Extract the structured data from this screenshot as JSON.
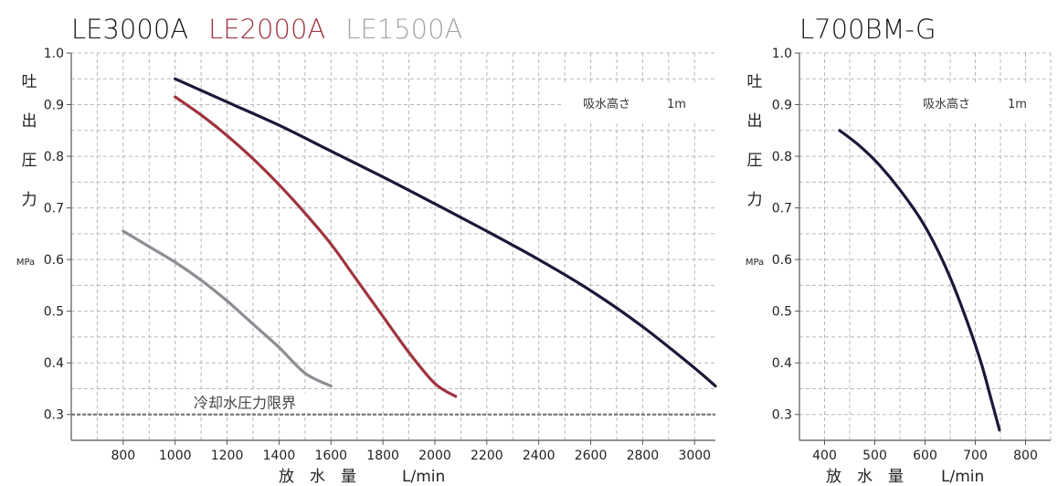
{
  "chart_data": [
    {
      "type": "line",
      "titles": [
        {
          "text": "LE3000A",
          "color": "#1a1a1a"
        },
        {
          "text": "LE2000A",
          "color": "#a0343f"
        },
        {
          "text": "LE1500A",
          "color": "#a5a5a5"
        }
      ],
      "ylabel_chars": [
        "吐",
        "出",
        "圧",
        "力"
      ],
      "yunit": "MPa",
      "xlabel_chars": [
        "放",
        "水",
        "量"
      ],
      "xunit": "L/min",
      "xlim": [
        600,
        3080
      ],
      "ylim": [
        0.25,
        1.0
      ],
      "xticks": [
        "800",
        "1000",
        "1200",
        "1400",
        "1600",
        "1800",
        "2000",
        "2200",
        "2400",
        "2600",
        "2800",
        "3000"
      ],
      "yticks": [
        "0.3",
        "0.4",
        "0.5",
        "0.6",
        "0.7",
        "0.8",
        "0.9",
        "1.0"
      ],
      "note": {
        "label": "吸水高さ",
        "value": "1m"
      },
      "limit": {
        "label": "冷却水圧力限界",
        "y": 0.3
      },
      "grid": "dashed",
      "series": [
        {
          "name": "LE3000A",
          "color": "#1b1838",
          "x": [
            1000,
            1200,
            1400,
            1600,
            1800,
            2000,
            2200,
            2400,
            2600,
            2800,
            3000,
            3080
          ],
          "y": [
            0.95,
            0.905,
            0.86,
            0.81,
            0.76,
            0.708,
            0.655,
            0.6,
            0.54,
            0.47,
            0.39,
            0.355
          ]
        },
        {
          "name": "LE2000A",
          "color": "#a0343f",
          "x": [
            1000,
            1100,
            1200,
            1300,
            1400,
            1500,
            1600,
            1700,
            1800,
            1900,
            2000,
            2080
          ],
          "y": [
            0.915,
            0.88,
            0.84,
            0.795,
            0.745,
            0.69,
            0.63,
            0.56,
            0.49,
            0.42,
            0.36,
            0.335
          ]
        },
        {
          "name": "LE1500A",
          "color": "#8d8d93",
          "x": [
            800,
            900,
            1000,
            1100,
            1200,
            1300,
            1400,
            1500,
            1600
          ],
          "y": [
            0.655,
            0.625,
            0.595,
            0.56,
            0.52,
            0.475,
            0.43,
            0.38,
            0.355
          ]
        }
      ]
    },
    {
      "type": "line",
      "titles": [
        {
          "text": "L700BM-G",
          "color": "#1a1a1a"
        }
      ],
      "ylabel_chars": [
        "吐",
        "出",
        "圧",
        "力"
      ],
      "yunit": "MPa",
      "xlabel_chars": [
        "放",
        "水",
        "量"
      ],
      "xunit": "L/min",
      "xlim": [
        350,
        850
      ],
      "ylim": [
        0.25,
        1.0
      ],
      "xticks": [
        "400",
        "500",
        "600",
        "700",
        "800"
      ],
      "yticks": [
        "0.3",
        "0.4",
        "0.5",
        "0.6",
        "0.7",
        "0.8",
        "0.9",
        "1.0"
      ],
      "note": {
        "label": "吸水高さ",
        "value": "1m"
      },
      "grid": "dashed",
      "series": [
        {
          "name": "L700BM-G",
          "color": "#1b1838",
          "x": [
            430,
            470,
            510,
            550,
            590,
            620,
            650,
            680,
            710,
            730,
            748
          ],
          "y": [
            0.85,
            0.82,
            0.782,
            0.735,
            0.68,
            0.628,
            0.565,
            0.49,
            0.405,
            0.335,
            0.27
          ]
        }
      ]
    }
  ]
}
